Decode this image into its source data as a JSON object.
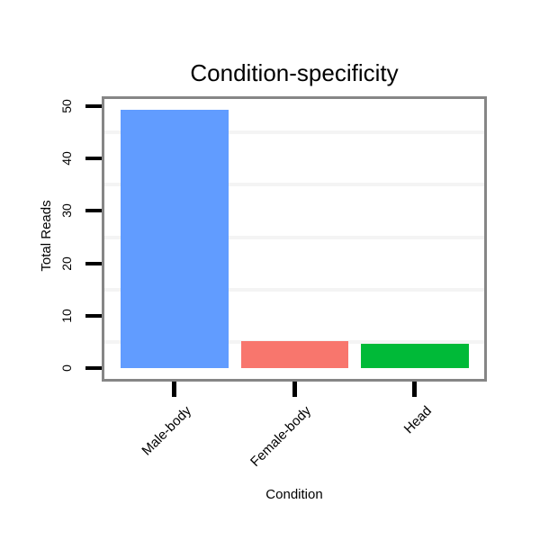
{
  "chart_data": {
    "type": "bar",
    "title": "Condition-specificity",
    "xlabel": "Condition",
    "ylabel": "Total Reads",
    "categories": [
      "Male-body",
      "Female-body",
      "Head"
    ],
    "values": [
      49.3,
      5.1,
      4.6
    ],
    "bar_colors": [
      "#619CFF",
      "#F8766D",
      "#00BA38"
    ],
    "ylim": [
      0,
      50
    ],
    "yticks": [
      0,
      10,
      20,
      30,
      40,
      50
    ],
    "ytick_labels": [
      "0",
      "10",
      "20",
      "30",
      "40",
      "50"
    ],
    "minor_gridlines": [
      5,
      15,
      25,
      35,
      45
    ],
    "grid": "faint horizontal minor gridlines only",
    "legend": "none",
    "plot_border_color": "#868686",
    "tick_color": "#000000",
    "minor_gridline_color": "#f4f4f4",
    "background_color": "#ffffff",
    "x_tick_label_rotation_deg": 45,
    "y_tick_label_rotation_deg": 90
  }
}
